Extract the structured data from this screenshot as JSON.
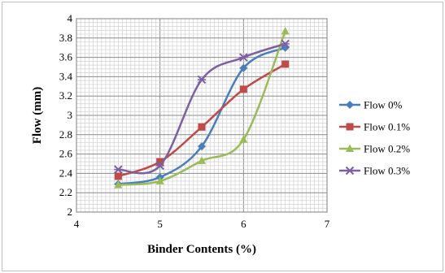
{
  "chart_data": {
    "type": "line",
    "xlabel": "Binder Contents (%)",
    "ylabel": "Flow  (mm)",
    "xlim": [
      4,
      7
    ],
    "ylim": [
      2,
      4
    ],
    "x_ticks": [
      "4",
      "5",
      "6",
      "7"
    ],
    "y_ticks": [
      "2",
      "2.2",
      "2.4",
      "2.6",
      "2.8",
      "3",
      "3.2",
      "3.4",
      "3.6",
      "3.8",
      "4"
    ],
    "grid": "major and minor",
    "smooth": true,
    "legend_position": "right",
    "series": [
      {
        "name": "Flow 0%",
        "color": "#4a7ebb",
        "marker": "diamond",
        "x": [
          4.5,
          5,
          5.5,
          6,
          6.5
        ],
        "y": [
          2.29,
          2.36,
          2.68,
          3.49,
          3.7
        ]
      },
      {
        "name": "Flow 0.1%",
        "color": "#be4b48",
        "marker": "square",
        "x": [
          4.5,
          5,
          5.5,
          6,
          6.5
        ],
        "y": [
          2.37,
          2.52,
          2.88,
          3.27,
          3.53
        ]
      },
      {
        "name": "Flow 0.2%",
        "color": "#9bbb59",
        "marker": "triangle",
        "x": [
          4.5,
          5,
          5.5,
          6,
          6.5
        ],
        "y": [
          2.28,
          2.32,
          2.53,
          2.75,
          3.87
        ]
      },
      {
        "name": "Flow 0.3%",
        "color": "#7d60a0",
        "marker": "x-star",
        "x": [
          4.5,
          5,
          5.5,
          6,
          6.5
        ],
        "y": [
          2.44,
          2.48,
          3.37,
          3.6,
          3.74
        ]
      }
    ]
  }
}
